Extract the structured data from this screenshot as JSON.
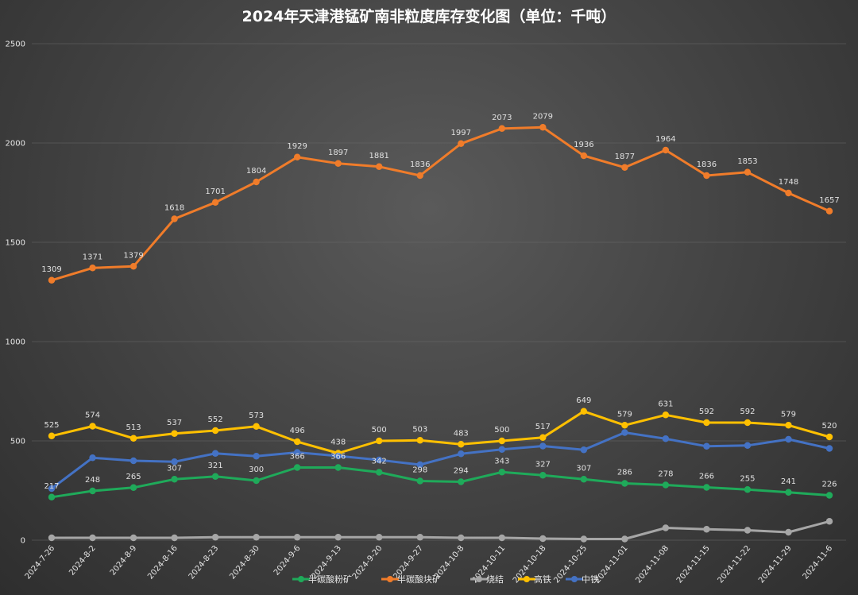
{
  "chart_data": {
    "type": "line",
    "title": "2024年天津港锰矿南非粒度库存变化图（单位：千吨）",
    "xlabel": "",
    "ylabel": "",
    "ylim": [
      0,
      2500
    ],
    "yticks": [
      0,
      500,
      1000,
      1500,
      2000,
      2500
    ],
    "grid": true,
    "legend_position": "bottom",
    "categories": [
      "2024-7-26",
      "2024-8-2",
      "2024-8-9",
      "2024-8-16",
      "2024-8-23",
      "2024-8-30",
      "2024-9-6",
      "2024-9-13",
      "2024-9-20",
      "2024-9-27",
      "2024-10-8",
      "2024-10-11",
      "2024-10-18",
      "2024-10-25",
      "2024-11-01",
      "2024-11-08",
      "2024-11-15",
      "2024-11-22",
      "2024-11-29",
      "2024-11-6"
    ],
    "series": [
      {
        "name": "半碳酸粉矿",
        "color": "#1faa5a",
        "show_labels": true,
        "values": [
          217,
          248,
          265,
          307,
          321,
          300,
          366,
          366,
          342,
          298,
          294,
          343,
          327,
          307,
          286,
          278,
          266,
          255,
          241,
          226
        ]
      },
      {
        "name": "半碳酸块矿",
        "color": "#f07c2a",
        "show_labels": true,
        "values": [
          1309,
          1371,
          1379,
          1618,
          1701,
          1804,
          1929,
          1897,
          1881,
          1836,
          1997,
          2073,
          2079,
          1936,
          1877,
          1964,
          1836,
          1853,
          1748,
          1657
        ]
      },
      {
        "name": "烧结",
        "color": "#a6a6a6",
        "show_labels": false,
        "values": [
          12,
          12,
          12,
          12,
          15,
          15,
          15,
          15,
          15,
          15,
          12,
          12,
          8,
          6,
          6,
          62,
          55,
          50,
          40,
          95
        ]
      },
      {
        "name": "高铁",
        "color": "#ffc000",
        "show_labels": true,
        "values": [
          525,
          574,
          513,
          537,
          552,
          573,
          496,
          438,
          500,
          503,
          483,
          500,
          517,
          649,
          579,
          631,
          592,
          592,
          579,
          520
        ]
      },
      {
        "name": "中铁",
        "color": "#4472c4",
        "show_labels": false,
        "values": [
          260,
          415,
          400,
          395,
          437,
          423,
          442,
          424,
          404,
          380,
          435,
          457,
          474,
          455,
          542,
          511,
          473,
          477,
          508,
          462
        ]
      }
    ]
  }
}
